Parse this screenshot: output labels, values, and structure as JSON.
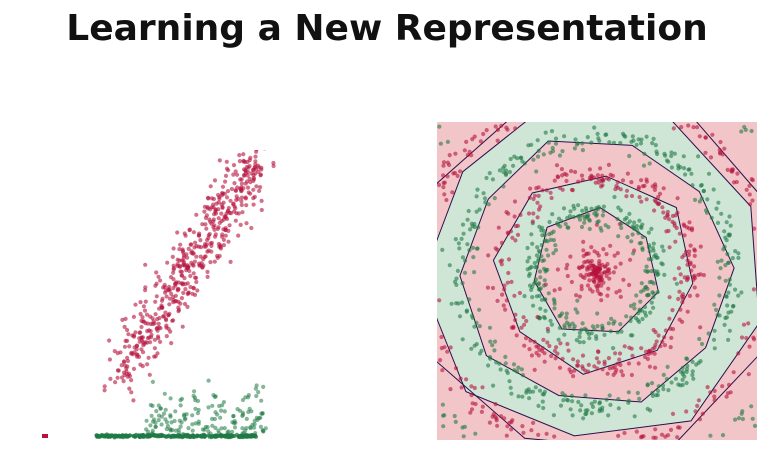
{
  "slide": {
    "title": "Learning a New Representation"
  },
  "colors": {
    "class_a": "#b5123e",
    "class_b": "#1f7a44",
    "region_a": "#f2c6c8",
    "region_b": "#cfe6d7",
    "boundary": "#2b0f4a"
  },
  "left_plot": {
    "description_kind": "scatter of two classes in a learned feature space",
    "class_a_cluster": "elongated diagonal band",
    "class_b_cluster": "flat band along the bottom axis"
  },
  "right_plot": {
    "description_kind": "concentric rings with decision regions",
    "ring_order_from_center": [
      "class_a",
      "class_b",
      "class_a",
      "class_b",
      "class_a"
    ]
  }
}
